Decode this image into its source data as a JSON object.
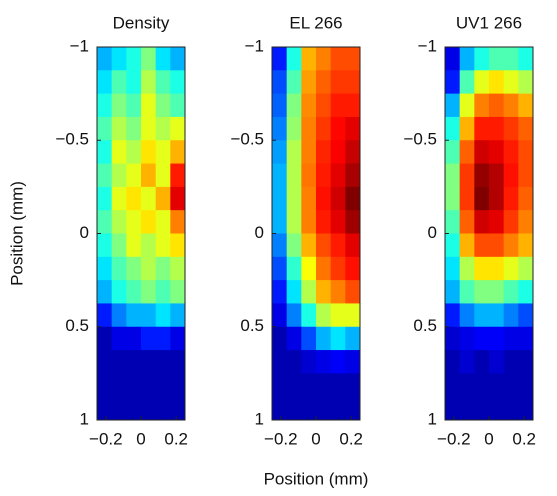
{
  "chart_data": [
    {
      "type": "heatmap",
      "title": "Density",
      "ylabel": "Position (mm)",
      "colormap": "jet",
      "vlim": [
        0,
        1
      ],
      "xlim": [
        -0.25,
        0.25
      ],
      "ylim": [
        -1,
        1
      ],
      "xticks": [
        {
          "value": -0.2,
          "label": "−0.2"
        },
        0,
        0.2
      ],
      "yticks": [
        {
          "value": -1,
          "label": "−1"
        },
        {
          "value": -0.5,
          "label": "−0.5"
        },
        0,
        0.5,
        1
      ],
      "values": [
        [
          0.3,
          0.35,
          0.4,
          0.5,
          0.35,
          0.3
        ],
        [
          0.35,
          0.45,
          0.4,
          0.55,
          0.45,
          0.4
        ],
        [
          0.4,
          0.5,
          0.45,
          0.6,
          0.5,
          0.45
        ],
        [
          0.45,
          0.55,
          0.5,
          0.6,
          0.55,
          0.6
        ],
        [
          0.4,
          0.6,
          0.55,
          0.65,
          0.6,
          0.7
        ],
        [
          0.45,
          0.55,
          0.6,
          0.7,
          0.6,
          0.85
        ],
        [
          0.4,
          0.6,
          0.65,
          0.6,
          0.7,
          0.9
        ],
        [
          0.45,
          0.55,
          0.6,
          0.65,
          0.6,
          0.75
        ],
        [
          0.4,
          0.5,
          0.6,
          0.55,
          0.6,
          0.65
        ],
        [
          0.35,
          0.45,
          0.5,
          0.55,
          0.5,
          0.55
        ],
        [
          0.3,
          0.4,
          0.45,
          0.5,
          0.45,
          0.5
        ],
        [
          0.15,
          0.25,
          0.3,
          0.3,
          0.35,
          0.3
        ],
        [
          0.05,
          0.1,
          0.1,
          0.15,
          0.15,
          0.1
        ],
        [
          0.05,
          0.05,
          0.05,
          0.05,
          0.05,
          0.05
        ],
        [
          0.05,
          0.05,
          0.05,
          0.05,
          0.05,
          0.05
        ],
        [
          0.05,
          0.05,
          0.05,
          0.05,
          0.05,
          0.05
        ]
      ]
    },
    {
      "type": "heatmap",
      "title": "EL 266",
      "xlabel": "Position (mm)",
      "colormap": "jet",
      "vlim": [
        0,
        1
      ],
      "xlim": [
        -0.25,
        0.25
      ],
      "ylim": [
        -1,
        1
      ],
      "xticks": [
        {
          "value": -0.2,
          "label": "−0.2"
        },
        0,
        0.2
      ],
      "yticks": [
        {
          "value": -1,
          "label": "−1"
        },
        {
          "value": -0.5,
          "label": "−0.5"
        },
        0,
        0.5,
        1
      ],
      "values": [
        [
          0.15,
          0.4,
          0.7,
          0.75,
          0.8,
          0.8
        ],
        [
          0.2,
          0.45,
          0.72,
          0.78,
          0.82,
          0.82
        ],
        [
          0.22,
          0.5,
          0.74,
          0.8,
          0.85,
          0.85
        ],
        [
          0.25,
          0.52,
          0.75,
          0.82,
          0.87,
          0.9
        ],
        [
          0.28,
          0.55,
          0.75,
          0.84,
          0.88,
          0.93
        ],
        [
          0.3,
          0.55,
          0.76,
          0.85,
          0.9,
          0.96
        ],
        [
          0.3,
          0.55,
          0.75,
          0.86,
          0.92,
          1.0
        ],
        [
          0.3,
          0.55,
          0.75,
          0.85,
          0.9,
          0.97
        ],
        [
          0.25,
          0.5,
          0.7,
          0.8,
          0.85,
          0.9
        ],
        [
          0.2,
          0.42,
          0.62,
          0.76,
          0.82,
          0.86
        ],
        [
          0.15,
          0.35,
          0.55,
          0.7,
          0.75,
          0.8
        ],
        [
          0.1,
          0.25,
          0.4,
          0.55,
          0.6,
          0.6
        ],
        [
          0.05,
          0.1,
          0.2,
          0.3,
          0.35,
          0.3
        ],
        [
          0.05,
          0.05,
          0.08,
          0.1,
          0.12,
          0.1
        ],
        [
          0.05,
          0.05,
          0.05,
          0.05,
          0.05,
          0.05
        ],
        [
          0.05,
          0.05,
          0.05,
          0.05,
          0.05,
          0.05
        ]
      ]
    },
    {
      "type": "heatmap",
      "title": "UV1 266",
      "colormap": "jet",
      "vlim": [
        0,
        1
      ],
      "xlim": [
        -0.25,
        0.25
      ],
      "ylim": [
        -1,
        1
      ],
      "xticks": [
        {
          "value": -0.2,
          "label": "−0.2"
        },
        0,
        0.2
      ],
      "yticks": [
        {
          "value": -1,
          "label": "−1"
        },
        {
          "value": -0.5,
          "label": "−0.5"
        },
        0,
        0.5,
        1
      ],
      "values": [
        [
          0.1,
          0.3,
          0.4,
          0.45,
          0.45,
          0.4
        ],
        [
          0.15,
          0.45,
          0.6,
          0.65,
          0.6,
          0.55
        ],
        [
          0.3,
          0.6,
          0.75,
          0.78,
          0.75,
          0.7
        ],
        [
          0.4,
          0.7,
          0.85,
          0.85,
          0.82,
          0.78
        ],
        [
          0.45,
          0.78,
          0.92,
          0.9,
          0.85,
          0.8
        ],
        [
          0.5,
          0.82,
          0.98,
          0.95,
          0.86,
          0.8
        ],
        [
          0.5,
          0.82,
          1.0,
          0.95,
          0.85,
          0.78
        ],
        [
          0.45,
          0.78,
          0.92,
          0.9,
          0.82,
          0.75
        ],
        [
          0.4,
          0.7,
          0.8,
          0.8,
          0.75,
          0.7
        ],
        [
          0.35,
          0.55,
          0.65,
          0.65,
          0.6,
          0.55
        ],
        [
          0.3,
          0.45,
          0.5,
          0.5,
          0.45,
          0.4
        ],
        [
          0.15,
          0.25,
          0.3,
          0.3,
          0.25,
          0.2
        ],
        [
          0.08,
          0.1,
          0.12,
          0.12,
          0.1,
          0.1
        ],
        [
          0.05,
          0.08,
          0.05,
          0.08,
          0.05,
          0.05
        ],
        [
          0.05,
          0.05,
          0.05,
          0.05,
          0.05,
          0.05
        ],
        [
          0.05,
          0.05,
          0.05,
          0.05,
          0.05,
          0.05
        ]
      ]
    }
  ]
}
